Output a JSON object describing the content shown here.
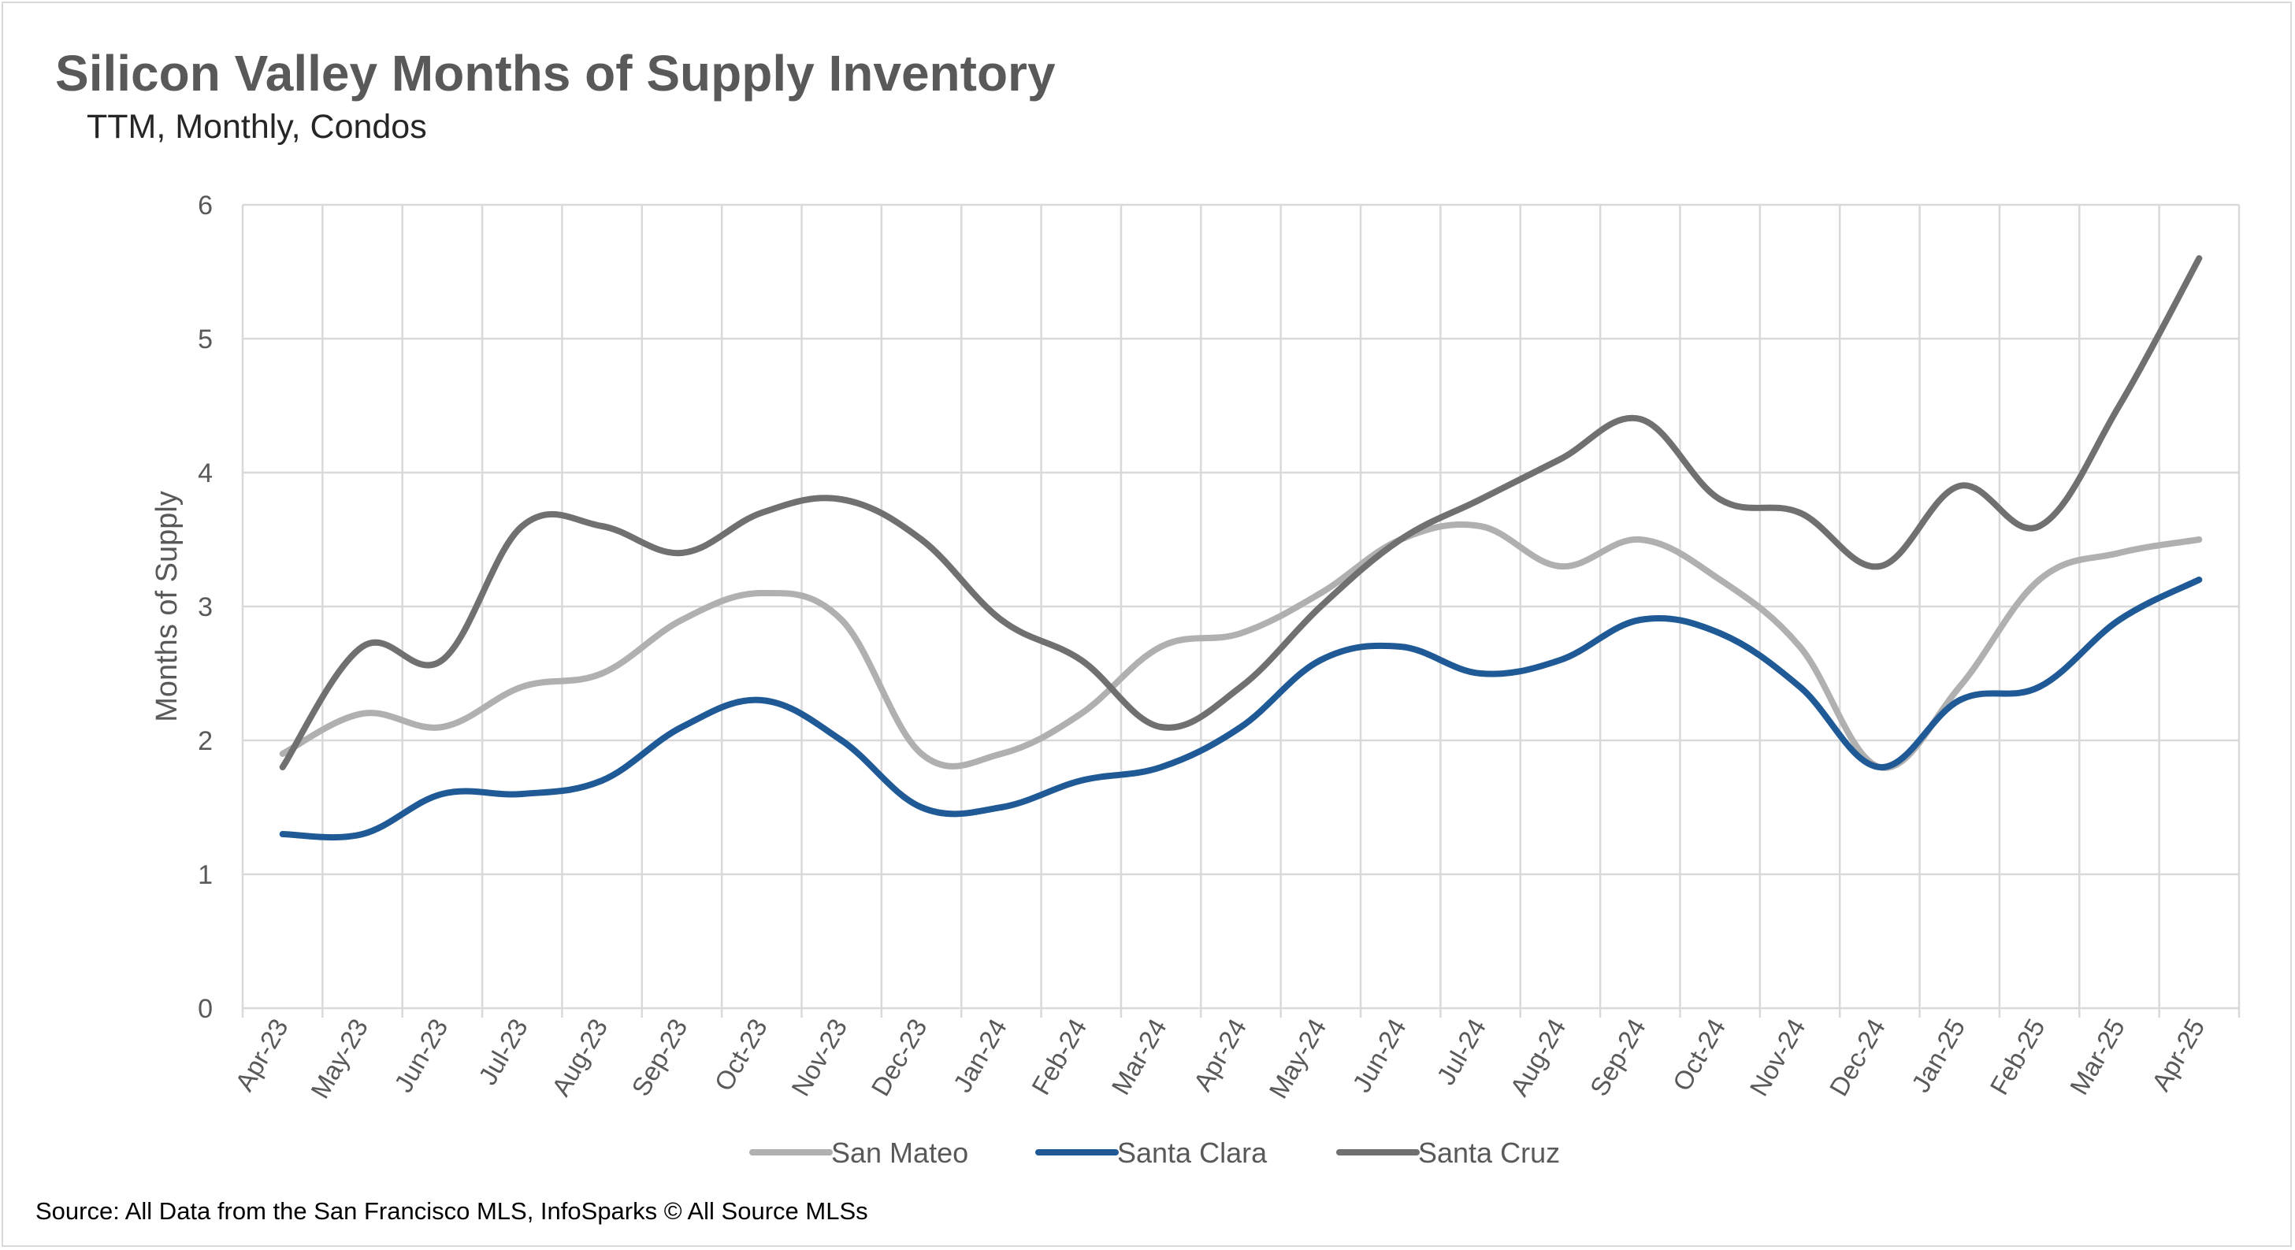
{
  "chart_data": {
    "type": "line",
    "title": "Silicon Valley Months of Supply Inventory",
    "subtitle": "TTM, Monthly, Condos",
    "ylabel": "Months of Supply",
    "xlabel": "",
    "ylim": [
      0,
      6
    ],
    "yticks": [
      "0",
      "1",
      "2",
      "3",
      "4",
      "5",
      "6"
    ],
    "grid": true,
    "legend": "bottom",
    "categories": [
      "Apr-23",
      "May-23",
      "Jun-23",
      "Jul-23",
      "Aug-23",
      "Sep-23",
      "Oct-23",
      "Nov-23",
      "Dec-23",
      "Jan-24",
      "Feb-24",
      "Mar-24",
      "Apr-24",
      "May-24",
      "Jun-24",
      "Jul-24",
      "Aug-24",
      "Sep-24",
      "Oct-24",
      "Nov-24",
      "Dec-24",
      "Jan-25",
      "Feb-25",
      "Mar-25",
      "Apr-25"
    ],
    "series": [
      {
        "name": "San Mateo",
        "color": "#b0b0b0",
        "values": [
          1.9,
          2.2,
          2.1,
          2.4,
          2.5,
          2.9,
          3.1,
          2.9,
          1.9,
          1.9,
          2.2,
          2.7,
          2.8,
          3.1,
          3.5,
          3.6,
          3.3,
          3.5,
          3.2,
          2.7,
          1.8,
          2.4,
          3.2,
          3.4,
          3.5
        ]
      },
      {
        "name": "Santa Clara",
        "color": "#1f5a96",
        "values": [
          1.3,
          1.3,
          1.6,
          1.6,
          1.7,
          2.1,
          2.3,
          2.0,
          1.5,
          1.5,
          1.7,
          1.8,
          2.1,
          2.6,
          2.7,
          2.5,
          2.6,
          2.9,
          2.8,
          2.4,
          1.8,
          2.3,
          2.4,
          2.9,
          3.2
        ]
      },
      {
        "name": "Santa Cruz",
        "color": "#707070",
        "values": [
          1.8,
          2.7,
          2.6,
          3.6,
          3.6,
          3.4,
          3.7,
          3.8,
          3.5,
          2.9,
          2.6,
          2.1,
          2.4,
          3.0,
          3.5,
          3.8,
          4.1,
          4.4,
          3.8,
          3.7,
          3.3,
          3.9,
          3.6,
          4.5,
          5.6
        ]
      }
    ],
    "source": "Source: All Data from the San Francisco MLS, InfoSparks © All Source MLSs"
  }
}
